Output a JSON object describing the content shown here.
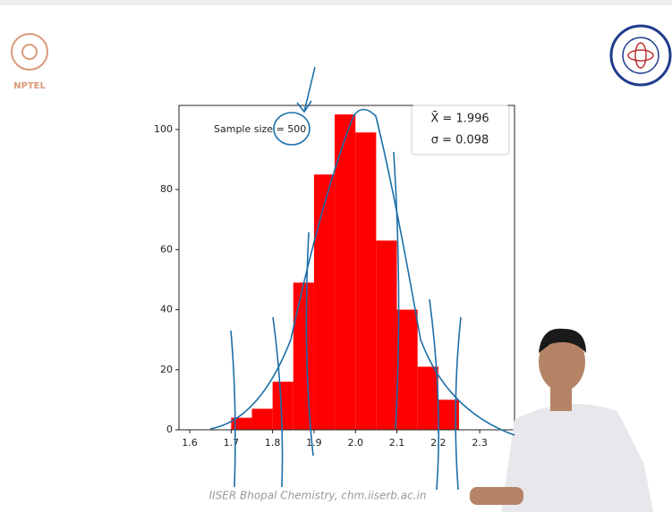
{
  "logo_text": "NPTEL",
  "footer": "IISER Bhopal Chemistry, chm.iiserb.ac.in",
  "chart_data": {
    "type": "histogram",
    "bins": [
      1.7,
      1.75,
      1.8,
      1.85,
      1.9,
      1.95,
      2.0,
      2.05,
      2.1,
      2.15,
      2.2,
      2.25
    ],
    "values": [
      4,
      7,
      16,
      49,
      85,
      105,
      99,
      63,
      40,
      21,
      10
    ],
    "color": "#ff0000",
    "xlim": [
      1.574,
      2.384
    ],
    "ylim": [
      0,
      108
    ],
    "xticks": [
      1.6,
      1.7,
      1.8,
      1.9,
      {
        "value": 2,
        "label": "2.0"
      },
      2.1,
      2.2,
      2.3
    ],
    "yticks": [
      0,
      20,
      40,
      60,
      80,
      100
    ],
    "annotation": "Sample size = 500",
    "stats": [
      "X̄ = 1.996",
      "σ = 0.098"
    ]
  }
}
